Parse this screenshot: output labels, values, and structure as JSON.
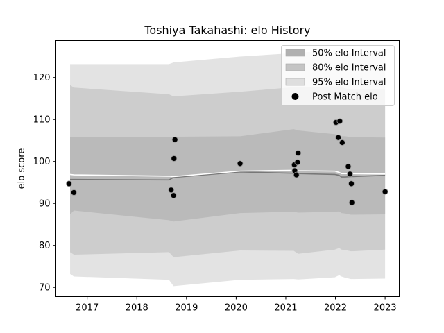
{
  "chart_data": {
    "type": "line",
    "title": "Toshiya Takahashi: elo History",
    "xlabel": "",
    "ylabel": "elo score",
    "xlim": [
      "2016-05-15",
      "2023-04-15"
    ],
    "ylim": [
      67.8,
      128.8
    ],
    "x_ticks": [
      "2017",
      "2018",
      "2019",
      "2020",
      "2021",
      "2022",
      "2023"
    ],
    "y_ticks": [
      70,
      80,
      90,
      100,
      110,
      120
    ],
    "grid": false,
    "legend_position": "top-right",
    "band_dates": [
      "2016-08-28",
      "2016-09-25",
      "2018-08-25",
      "2018-09-28",
      "2020-01-30",
      "2021-02-28",
      "2021-04-02",
      "2021-12-28",
      "2022-01-28",
      "2022-02-15",
      "2022-03-15",
      "2022-04-25",
      "2023-01-01"
    ],
    "series": [
      {
        "name": "95% elo Interval",
        "kind": "band",
        "color": "#e3e3e3",
        "upper": [
          123.2,
          123.2,
          123.2,
          123.6,
          125.0,
          125.8,
          125.9,
          126.5,
          126.2,
          126.1,
          126.0,
          125.8,
          125.8
        ],
        "lower": [
          73.2,
          72.6,
          71.8,
          70.3,
          71.8,
          72.0,
          71.9,
          72.4,
          72.9,
          72.6,
          72.3,
          72.0,
          72.1
        ]
      },
      {
        "name": "80% elo Interval",
        "kind": "band",
        "color": "#cdcdcd",
        "upper": [
          118.2,
          117.6,
          116.0,
          115.5,
          116.6,
          117.7,
          117.7,
          117.9,
          118.0,
          117.7,
          117.4,
          117.1,
          117.1
        ],
        "lower": [
          78.4,
          77.8,
          78.4,
          77.2,
          78.8,
          78.7,
          78.0,
          79.0,
          79.4,
          79.0,
          78.9,
          78.6,
          79.0
        ]
      },
      {
        "name": "50% elo Interval",
        "kind": "band",
        "color": "#bababa",
        "upper": [
          105.8,
          105.8,
          105.9,
          105.9,
          106.0,
          107.7,
          107.4,
          106.5,
          106.3,
          106.0,
          106.0,
          105.8,
          105.7
        ],
        "lower": [
          87.4,
          88.3,
          86.0,
          85.7,
          87.7,
          88.0,
          87.8,
          88.0,
          88.1,
          87.7,
          87.6,
          87.3,
          87.4
        ]
      },
      {
        "name": "mean-line",
        "kind": "line",
        "color": "#777777",
        "values": [
          95.7,
          95.7,
          95.6,
          96.2,
          97.5,
          97.2,
          97.1,
          96.9,
          96.7,
          96.3,
          96.3,
          96.4,
          96.7
        ]
      },
      {
        "name": "median-line",
        "kind": "line",
        "color": "#ffffff",
        "values": [
          96.9,
          96.8,
          96.5,
          96.4,
          97.7,
          97.9,
          97.8,
          97.7,
          97.4,
          97.1,
          97.1,
          97.1,
          97.0
        ]
      },
      {
        "name": "Post Match elo",
        "kind": "scatter",
        "color": "#000000",
        "points": [
          {
            "x": "2016-08-20",
            "y": 94.7
          },
          {
            "x": "2016-09-25",
            "y": 92.6
          },
          {
            "x": "2018-09-10",
            "y": 93.2
          },
          {
            "x": "2018-09-28",
            "y": 91.9
          },
          {
            "x": "2018-10-01",
            "y": 100.7
          },
          {
            "x": "2018-10-08",
            "y": 105.2
          },
          {
            "x": "2020-01-30",
            "y": 99.5
          },
          {
            "x": "2021-03-05",
            "y": 99.2
          },
          {
            "x": "2021-03-08",
            "y": 97.8
          },
          {
            "x": "2021-03-20",
            "y": 96.8
          },
          {
            "x": "2021-03-28",
            "y": 99.8
          },
          {
            "x": "2021-04-02",
            "y": 102.0
          },
          {
            "x": "2022-01-05",
            "y": 109.3
          },
          {
            "x": "2022-01-22",
            "y": 105.7
          },
          {
            "x": "2022-02-02",
            "y": 109.6
          },
          {
            "x": "2022-02-20",
            "y": 104.5
          },
          {
            "x": "2022-04-05",
            "y": 98.8
          },
          {
            "x": "2022-04-18",
            "y": 97.0
          },
          {
            "x": "2022-04-28",
            "y": 94.7
          },
          {
            "x": "2022-05-02",
            "y": 90.2
          },
          {
            "x": "2023-01-01",
            "y": 92.8
          }
        ]
      }
    ],
    "legend": [
      {
        "label": "50% elo Interval",
        "swatch": "#b0b0b0",
        "marker": "rect"
      },
      {
        "label": "80% elo Interval",
        "swatch": "#c4c4c4",
        "marker": "rect"
      },
      {
        "label": "95% elo Interval",
        "swatch": "#dedede",
        "marker": "rect"
      },
      {
        "label": "Post Match elo",
        "swatch": "#000000",
        "marker": "circle"
      }
    ]
  }
}
